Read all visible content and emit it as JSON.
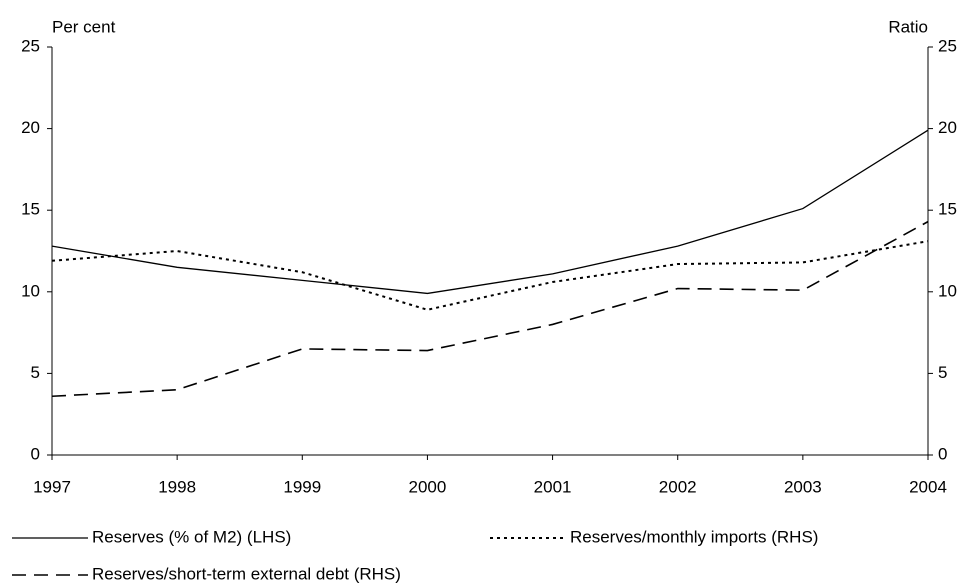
{
  "chart_data": {
    "type": "line",
    "y_label": "Per cent",
    "y2_label": "Ratio",
    "x": [
      1997,
      1998,
      1999,
      2000,
      2001,
      2002,
      2003,
      2004
    ],
    "xlim": [
      1997,
      2004
    ],
    "xticks": [
      1997,
      1998,
      1999,
      2000,
      2001,
      2002,
      2003,
      2004
    ],
    "ylim": [
      0,
      25
    ],
    "yticks": [
      0,
      5,
      10,
      15,
      20,
      25
    ],
    "y2lim": [
      0,
      25
    ],
    "y2ticks": [
      0,
      5,
      10,
      15,
      20,
      25
    ],
    "grid": false,
    "series": [
      {
        "name": "Reserves (% of M2) (LHS)",
        "color": "#000000",
        "style": "solid",
        "values": [
          12.8,
          11.5,
          10.7,
          9.9,
          11.1,
          12.8,
          15.1,
          19.9
        ]
      },
      {
        "name": "Reserves/monthly imports (RHS)",
        "color": "#000000",
        "style": "dotted",
        "axis": "y2",
        "values": [
          11.9,
          12.5,
          11.2,
          8.9,
          10.6,
          11.7,
          11.8,
          13.1
        ]
      },
      {
        "name": "Reserves/short-term external debt (RHS)",
        "color": "#000000",
        "style": "dashed",
        "axis": "y2",
        "values": [
          3.6,
          4.0,
          6.5,
          6.4,
          8.0,
          10.2,
          10.1,
          14.3
        ]
      }
    ]
  }
}
